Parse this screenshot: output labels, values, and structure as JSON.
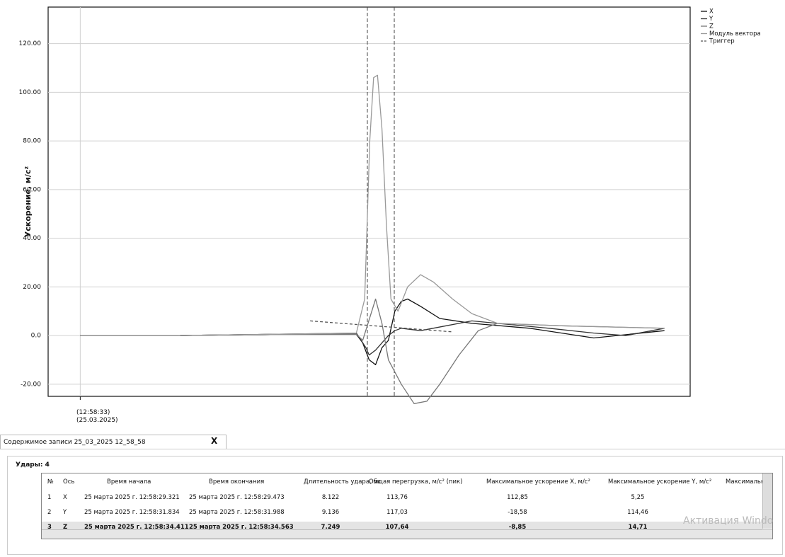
{
  "chart_data": {
    "type": "line",
    "ylabel": "Ускорение, м/с²",
    "xlim": [
      0,
      100
    ],
    "ylim": [
      -25,
      135
    ],
    "xticks": [
      {
        "value": 5,
        "label": "(12:58:33)\n(25.03.2025)"
      }
    ],
    "yticks": [
      {
        "value": -20,
        "label": "-20.00"
      },
      {
        "value": 0,
        "label": "0.0"
      },
      {
        "value": 20,
        "label": "20.00"
      },
      {
        "value": 40,
        "label": "40.00"
      },
      {
        "value": 60,
        "label": "60.00"
      },
      {
        "value": 80,
        "label": "80.00"
      },
      {
        "value": 100,
        "label": "100.00"
      },
      {
        "value": 120,
        "label": "120.00"
      }
    ],
    "grid": true,
    "legend": "top-right",
    "series": [
      {
        "name": "X",
        "color": "#111111",
        "x": [
          5,
          20,
          35,
          48,
          49,
          50,
          51,
          52,
          53,
          54,
          55,
          56,
          58,
          61,
          66,
          75,
          85,
          96
        ],
        "values": [
          0,
          0,
          0.5,
          0.5,
          -3,
          -10,
          -12,
          -5,
          -2,
          10,
          14,
          15,
          12,
          7,
          5,
          3,
          -1,
          2
        ]
      },
      {
        "name": "Y",
        "color": "#333333",
        "x": [
          5,
          20,
          35,
          48,
          49.5,
          50,
          51,
          53,
          54,
          55,
          58,
          62,
          66,
          70,
          78,
          85,
          90,
          96
        ],
        "values": [
          0,
          0,
          0.5,
          1,
          -5,
          -8,
          -6,
          0,
          2,
          3,
          2,
          4,
          6,
          5,
          3,
          1,
          0,
          3
        ]
      },
      {
        "name": "Z",
        "color": "#777777",
        "x": [
          5,
          20,
          35,
          48,
          49,
          51,
          52,
          53,
          55,
          57,
          59,
          61,
          64,
          67,
          70,
          80,
          96
        ],
        "values": [
          0,
          0,
          0.5,
          0.5,
          -2,
          15,
          5,
          -10,
          -20,
          -28,
          -27,
          -20,
          -8,
          2,
          5,
          4,
          3
        ]
      },
      {
        "name": "Модуль вектора",
        "color": "#999999",
        "x": [
          5,
          20,
          35,
          48,
          49.3,
          50.1,
          50.7,
          51.3,
          52,
          52.7,
          53.4,
          54.5,
          56,
          58,
          60,
          63,
          66,
          70,
          80,
          96
        ],
        "values": [
          0,
          0,
          0.5,
          1,
          15,
          80,
          106,
          107,
          85,
          45,
          15,
          10,
          20,
          25,
          22,
          15,
          9,
          5,
          4,
          3
        ]
      },
      {
        "name": "Триггер",
        "color": "#555555",
        "dashed": true,
        "x": [
          40.8,
          63
        ],
        "values": [
          6,
          1.5
        ]
      }
    ]
  },
  "tab": {
    "title": "Содержимое записи  25_03_2025 12_58_58",
    "close": "X"
  },
  "table": {
    "group": "Удары: 4",
    "columns": [
      "№",
      "Ось",
      "Время начала",
      "Время окончания",
      "Длительность удара, мс",
      "Общая перегрузка, м/с² (пик)",
      "Максимальное ускорение X, м/с²",
      "Максимальное ускорение Y, м/с²",
      "Максимальнс"
    ],
    "rows": [
      [
        "1",
        "X",
        "25 марта 2025 г. 12:58:29.321",
        "25 марта 2025 г. 12:58:29.473",
        "8.122",
        "113,76",
        "112,85",
        "5,25",
        ""
      ],
      [
        "2",
        "Y",
        "25 марта 2025 г. 12:58:31.834",
        "25 марта 2025 г. 12:58:31.988",
        "9.136",
        "117,03",
        "-18,58",
        "114,46",
        ""
      ],
      [
        "3",
        "Z",
        "25 марта 2025 г. 12:58:34.411",
        "25 марта 2025 г. 12:58:34.563",
        "7.249",
        "107,64",
        "-8,85",
        "14,71",
        ""
      ]
    ]
  },
  "watermark": "Активация Windo"
}
